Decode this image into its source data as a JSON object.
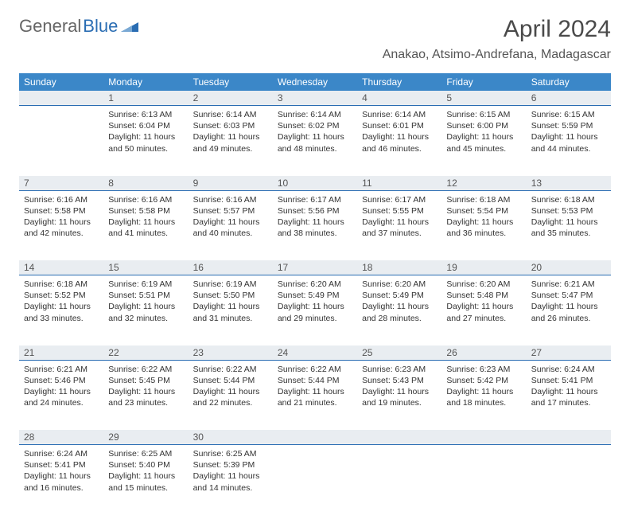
{
  "brand": {
    "part1": "General",
    "part2": "Blue"
  },
  "title": "April 2024",
  "location": "Anakao, Atsimo-Andrefana, Madagascar",
  "colors": {
    "header_bg": "#3b87c8",
    "header_text": "#ffffff",
    "daynum_bg": "#e9edf1",
    "daynum_border": "#2a6db3",
    "text": "#333333",
    "title_text": "#4a4a4a"
  },
  "day_names": [
    "Sunday",
    "Monday",
    "Tuesday",
    "Wednesday",
    "Thursday",
    "Friday",
    "Saturday"
  ],
  "weeks": [
    {
      "nums": [
        "",
        "1",
        "2",
        "3",
        "4",
        "5",
        "6"
      ],
      "cells": [
        null,
        {
          "sunrise": "Sunrise: 6:13 AM",
          "sunset": "Sunset: 6:04 PM",
          "day1": "Daylight: 11 hours",
          "day2": "and 50 minutes."
        },
        {
          "sunrise": "Sunrise: 6:14 AM",
          "sunset": "Sunset: 6:03 PM",
          "day1": "Daylight: 11 hours",
          "day2": "and 49 minutes."
        },
        {
          "sunrise": "Sunrise: 6:14 AM",
          "sunset": "Sunset: 6:02 PM",
          "day1": "Daylight: 11 hours",
          "day2": "and 48 minutes."
        },
        {
          "sunrise": "Sunrise: 6:14 AM",
          "sunset": "Sunset: 6:01 PM",
          "day1": "Daylight: 11 hours",
          "day2": "and 46 minutes."
        },
        {
          "sunrise": "Sunrise: 6:15 AM",
          "sunset": "Sunset: 6:00 PM",
          "day1": "Daylight: 11 hours",
          "day2": "and 45 minutes."
        },
        {
          "sunrise": "Sunrise: 6:15 AM",
          "sunset": "Sunset: 5:59 PM",
          "day1": "Daylight: 11 hours",
          "day2": "and 44 minutes."
        }
      ]
    },
    {
      "nums": [
        "7",
        "8",
        "9",
        "10",
        "11",
        "12",
        "13"
      ],
      "cells": [
        {
          "sunrise": "Sunrise: 6:16 AM",
          "sunset": "Sunset: 5:58 PM",
          "day1": "Daylight: 11 hours",
          "day2": "and 42 minutes."
        },
        {
          "sunrise": "Sunrise: 6:16 AM",
          "sunset": "Sunset: 5:58 PM",
          "day1": "Daylight: 11 hours",
          "day2": "and 41 minutes."
        },
        {
          "sunrise": "Sunrise: 6:16 AM",
          "sunset": "Sunset: 5:57 PM",
          "day1": "Daylight: 11 hours",
          "day2": "and 40 minutes."
        },
        {
          "sunrise": "Sunrise: 6:17 AM",
          "sunset": "Sunset: 5:56 PM",
          "day1": "Daylight: 11 hours",
          "day2": "and 38 minutes."
        },
        {
          "sunrise": "Sunrise: 6:17 AM",
          "sunset": "Sunset: 5:55 PM",
          "day1": "Daylight: 11 hours",
          "day2": "and 37 minutes."
        },
        {
          "sunrise": "Sunrise: 6:18 AM",
          "sunset": "Sunset: 5:54 PM",
          "day1": "Daylight: 11 hours",
          "day2": "and 36 minutes."
        },
        {
          "sunrise": "Sunrise: 6:18 AM",
          "sunset": "Sunset: 5:53 PM",
          "day1": "Daylight: 11 hours",
          "day2": "and 35 minutes."
        }
      ]
    },
    {
      "nums": [
        "14",
        "15",
        "16",
        "17",
        "18",
        "19",
        "20"
      ],
      "cells": [
        {
          "sunrise": "Sunrise: 6:18 AM",
          "sunset": "Sunset: 5:52 PM",
          "day1": "Daylight: 11 hours",
          "day2": "and 33 minutes."
        },
        {
          "sunrise": "Sunrise: 6:19 AM",
          "sunset": "Sunset: 5:51 PM",
          "day1": "Daylight: 11 hours",
          "day2": "and 32 minutes."
        },
        {
          "sunrise": "Sunrise: 6:19 AM",
          "sunset": "Sunset: 5:50 PM",
          "day1": "Daylight: 11 hours",
          "day2": "and 31 minutes."
        },
        {
          "sunrise": "Sunrise: 6:20 AM",
          "sunset": "Sunset: 5:49 PM",
          "day1": "Daylight: 11 hours",
          "day2": "and 29 minutes."
        },
        {
          "sunrise": "Sunrise: 6:20 AM",
          "sunset": "Sunset: 5:49 PM",
          "day1": "Daylight: 11 hours",
          "day2": "and 28 minutes."
        },
        {
          "sunrise": "Sunrise: 6:20 AM",
          "sunset": "Sunset: 5:48 PM",
          "day1": "Daylight: 11 hours",
          "day2": "and 27 minutes."
        },
        {
          "sunrise": "Sunrise: 6:21 AM",
          "sunset": "Sunset: 5:47 PM",
          "day1": "Daylight: 11 hours",
          "day2": "and 26 minutes."
        }
      ]
    },
    {
      "nums": [
        "21",
        "22",
        "23",
        "24",
        "25",
        "26",
        "27"
      ],
      "cells": [
        {
          "sunrise": "Sunrise: 6:21 AM",
          "sunset": "Sunset: 5:46 PM",
          "day1": "Daylight: 11 hours",
          "day2": "and 24 minutes."
        },
        {
          "sunrise": "Sunrise: 6:22 AM",
          "sunset": "Sunset: 5:45 PM",
          "day1": "Daylight: 11 hours",
          "day2": "and 23 minutes."
        },
        {
          "sunrise": "Sunrise: 6:22 AM",
          "sunset": "Sunset: 5:44 PM",
          "day1": "Daylight: 11 hours",
          "day2": "and 22 minutes."
        },
        {
          "sunrise": "Sunrise: 6:22 AM",
          "sunset": "Sunset: 5:44 PM",
          "day1": "Daylight: 11 hours",
          "day2": "and 21 minutes."
        },
        {
          "sunrise": "Sunrise: 6:23 AM",
          "sunset": "Sunset: 5:43 PM",
          "day1": "Daylight: 11 hours",
          "day2": "and 19 minutes."
        },
        {
          "sunrise": "Sunrise: 6:23 AM",
          "sunset": "Sunset: 5:42 PM",
          "day1": "Daylight: 11 hours",
          "day2": "and 18 minutes."
        },
        {
          "sunrise": "Sunrise: 6:24 AM",
          "sunset": "Sunset: 5:41 PM",
          "day1": "Daylight: 11 hours",
          "day2": "and 17 minutes."
        }
      ]
    },
    {
      "nums": [
        "28",
        "29",
        "30",
        "",
        "",
        "",
        ""
      ],
      "cells": [
        {
          "sunrise": "Sunrise: 6:24 AM",
          "sunset": "Sunset: 5:41 PM",
          "day1": "Daylight: 11 hours",
          "day2": "and 16 minutes."
        },
        {
          "sunrise": "Sunrise: 6:25 AM",
          "sunset": "Sunset: 5:40 PM",
          "day1": "Daylight: 11 hours",
          "day2": "and 15 minutes."
        },
        {
          "sunrise": "Sunrise: 6:25 AM",
          "sunset": "Sunset: 5:39 PM",
          "day1": "Daylight: 11 hours",
          "day2": "and 14 minutes."
        },
        null,
        null,
        null,
        null
      ]
    }
  ]
}
